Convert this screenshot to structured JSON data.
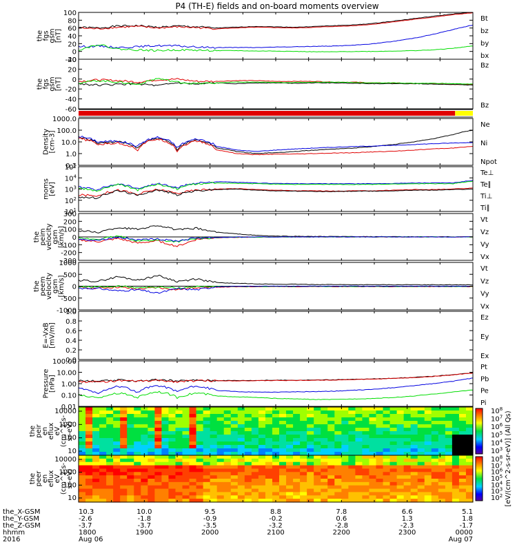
{
  "chart_data": {
    "type": "line",
    "title": "P4 (TH-E) fields and on-board moments overview",
    "colors": {
      "black": "#000000",
      "red": "#e00000",
      "green": "#00dd00",
      "blue": "#0000e0",
      "yellow": "#ffff00"
    },
    "panels": [
      {
        "id": "fgs_gsm_1",
        "ylabel": [
          "the",
          "fgs",
          "gsm",
          "[nT]"
        ],
        "ylim": [
          -20,
          100
        ],
        "scale": "linear",
        "yticks": [
          "100",
          "80",
          "60",
          "40",
          "20",
          "0",
          "-20"
        ],
        "legend": [
          "Bt",
          "bz",
          "by",
          "bx"
        ],
        "series": [
          {
            "name": "Bt",
            "color": "black",
            "values": [
              62,
              60,
              65,
              66,
              62,
              65,
              63,
              60,
              62,
              64,
              63,
              62,
              64,
              66,
              68,
              72,
              78,
              84,
              90,
              96,
              100
            ]
          },
          {
            "name": "bz",
            "color": "red",
            "values": [
              60,
              58,
              62,
              64,
              60,
              63,
              61,
              58,
              60,
              62,
              61,
              60,
              62,
              64,
              66,
              70,
              76,
              82,
              88,
              94,
              99
            ]
          },
          {
            "name": "by",
            "color": "blue",
            "values": [
              12,
              14,
              10,
              12,
              15,
              14,
              11,
              10,
              10,
              10,
              11,
              12,
              13,
              14,
              16,
              20,
              26,
              34,
              44,
              56,
              68
            ]
          },
          {
            "name": "bx",
            "color": "green",
            "values": [
              4,
              18,
              6,
              4,
              2,
              4,
              3,
              2,
              2,
              1,
              1,
              0,
              -1,
              -1,
              0,
              0,
              1,
              2,
              4,
              8,
              14
            ]
          }
        ]
      },
      {
        "id": "fgs_gsm_2",
        "ylabel": [
          "the",
          "fgs",
          "gsm",
          "[nT]"
        ],
        "ylim": [
          -70,
          60
        ],
        "scale": "linear",
        "yticks": [
          "40",
          "20",
          "0",
          "-20",
          "-40",
          "-60"
        ],
        "legend": [
          "Bz",
          "Bz"
        ],
        "series": [
          {
            "name": "Bz",
            "color": "red",
            "values": [
              2,
              6,
              4,
              0,
              6,
              8,
              2,
              2,
              4,
              4,
              2,
              2,
              2,
              0,
              0,
              -2,
              -2,
              -4,
              -4,
              -6,
              -6
            ]
          },
          {
            "name": "Bz",
            "color": "black",
            "values": [
              -4,
              -8,
              -6,
              -4,
              -10,
              -2,
              -6,
              -2,
              -4,
              -2,
              -2,
              -3,
              -2,
              -2,
              -3,
              -4,
              -4,
              -4,
              -5,
              -6,
              -8
            ]
          },
          {
            "name": "",
            "color": "green",
            "values": [
              -2,
              4,
              0,
              -6,
              10,
              0,
              -4,
              -2,
              0,
              0,
              -1,
              -1,
              0,
              0,
              -1,
              -2,
              -2,
              -3,
              -3,
              -4,
              -5
            ]
          }
        ]
      },
      {
        "id": "mode_bar",
        "type": "bar"
      },
      {
        "id": "density",
        "ylabel": [
          "Density",
          "[cm-3]"
        ],
        "ylim": [
          0.1,
          1000
        ],
        "scale": "log",
        "yticks": [
          "1000.0",
          "100.0",
          "10.0",
          "1.0",
          "0.1"
        ],
        "legend": [
          "Ne",
          "Ni",
          "Npot"
        ],
        "series": [
          {
            "name": "Ni",
            "color": "black",
            "values": [
              25,
              8,
              10,
              3,
              20,
              2,
              15,
              3,
              1.5,
              1,
              1.2,
              1.5,
              2,
              2.5,
              3,
              4,
              6,
              10,
              18,
              40,
              100
            ]
          },
          {
            "name": "Npot",
            "color": "blue",
            "values": [
              30,
              10,
              12,
              4,
              25,
              3,
              18,
              4,
              2,
              1.5,
              2,
              2.5,
              3,
              3.5,
              4,
              4.5,
              5,
              6,
              7,
              8,
              9
            ]
          },
          {
            "name": "Ne",
            "color": "red",
            "values": [
              20,
              6,
              8,
              2,
              18,
              1.5,
              12,
              2,
              1,
              0.8,
              0.9,
              0.9,
              1,
              1.1,
              1.2,
              1.4,
              1.6,
              2,
              2.5,
              3,
              4
            ]
          }
        ]
      },
      {
        "id": "moms",
        "ylabel": [
          "moms",
          "[eV]"
        ],
        "ylim": [
          10,
          100000
        ],
        "scale": "log",
        "yticks": [
          "10^5",
          "10^4",
          "10^3",
          "10^2",
          "10^1"
        ],
        "legend": [
          "Te⊥",
          "Te∥",
          "Ti⊥",
          "Ti∥"
        ],
        "series": [
          {
            "name": "Te⊥",
            "color": "red",
            "values": [
              300,
              250,
              800,
              300,
              900,
              400,
              800,
              1000,
              1100,
              900,
              800,
              700,
              700,
              650,
              700,
              700,
              800,
              900,
              900,
              1000,
              1200
            ]
          },
          {
            "name": "Te∥",
            "color": "black",
            "values": [
              200,
              150,
              700,
              250,
              800,
              300,
              700,
              900,
              1000,
              800,
              700,
              650,
              600,
              600,
              650,
              650,
              700,
              800,
              800,
              900,
              1000
            ]
          },
          {
            "name": "Ti⊥",
            "color": "blue",
            "values": [
              1500,
              800,
              3000,
              1000,
              3000,
              1200,
              3500,
              4500,
              4000,
              3500,
              3200,
              3000,
              3000,
              3000,
              3000,
              3000,
              3200,
              3500,
              3500,
              3500,
              6000
            ]
          },
          {
            "name": "Ti∥",
            "color": "green",
            "values": [
              1200,
              600,
              2500,
              800,
              2500,
              1000,
              3000,
              3500,
              3200,
              3000,
              2800,
              2600,
              2600,
              2600,
              2600,
              2600,
              2800,
              3000,
              3000,
              3000,
              5000
            ]
          }
        ]
      },
      {
        "id": "peim_velocity",
        "ylabel": [
          "the",
          "peim",
          "velocity",
          "gsm",
          "[km/s]"
        ],
        "ylim": [
          -300,
          300
        ],
        "scale": "linear",
        "yticks": [
          "300",
          "200",
          "100",
          "0",
          "-100",
          "-200",
          "-300"
        ],
        "legend": [
          "Vt",
          "Vz",
          "Vy",
          "Vx"
        ],
        "series": [
          {
            "name": "Vt",
            "color": "black",
            "values": [
              80,
              60,
              120,
              100,
              150,
              90,
              110,
              60,
              40,
              20,
              10,
              8,
              6,
              5,
              4,
              3,
              3,
              2,
              2,
              2,
              2
            ]
          },
          {
            "name": "Vz",
            "color": "red",
            "values": [
              -40,
              -60,
              -20,
              -80,
              -50,
              -120,
              -30,
              -10,
              -5,
              -2,
              0,
              0,
              0,
              0,
              0,
              0,
              0,
              0,
              0,
              0,
              0
            ]
          },
          {
            "name": "Vy",
            "color": "green",
            "values": [
              -20,
              -30,
              10,
              -50,
              -40,
              -60,
              -20,
              -8,
              -4,
              -2,
              0,
              0,
              0,
              0,
              0,
              0,
              0,
              0,
              0,
              0,
              0
            ]
          },
          {
            "name": "Vx",
            "color": "blue",
            "values": [
              -30,
              -40,
              0,
              -40,
              -30,
              -50,
              -10,
              -5,
              -2,
              0,
              0,
              0,
              0,
              0,
              0,
              0,
              0,
              0,
              0,
              0,
              0
            ]
          }
        ]
      },
      {
        "id": "peem_velocity",
        "ylabel": [
          "the",
          "peem",
          "velocity",
          "gsm",
          "[km/s]"
        ],
        "ylim": [
          -1000,
          1000
        ],
        "scale": "linear",
        "yticks": [
          "1000",
          "500",
          "0",
          "-500",
          "-1000"
        ],
        "legend": [
          "Vt",
          "Vz",
          "Vy",
          "Vx"
        ],
        "series": [
          {
            "name": "Vt",
            "color": "black",
            "values": [
              250,
              200,
              400,
              250,
              450,
              200,
              300,
              150,
              120,
              100,
              80,
              80,
              70,
              70,
              60,
              60,
              60,
              60,
              60,
              60,
              60
            ]
          },
          {
            "name": "Vz",
            "color": "red",
            "values": [
              -60,
              -80,
              -40,
              -120,
              -60,
              -150,
              -50,
              -40,
              -30,
              -20,
              -20,
              -20,
              -20,
              -20,
              -20,
              -20,
              -20,
              -20,
              -20,
              -20,
              -20
            ]
          },
          {
            "name": "Vy",
            "color": "green",
            "values": [
              -30,
              -40,
              0,
              -60,
              -40,
              -80,
              -20,
              -10,
              -10,
              -10,
              -10,
              -10,
              -10,
              -10,
              -10,
              -10,
              -10,
              -10,
              -10,
              -10,
              -10
            ]
          },
          {
            "name": "Vx",
            "color": "blue",
            "values": [
              -80,
              -100,
              -200,
              -150,
              -300,
              -100,
              -150,
              -20,
              -10,
              0,
              0,
              0,
              0,
              0,
              0,
              0,
              0,
              0,
              0,
              0,
              0
            ]
          }
        ]
      },
      {
        "id": "efield",
        "ylabel": [
          "E=-VxB",
          "[mV/m]"
        ],
        "ylim": [
          0,
          1
        ],
        "scale": "linear",
        "yticks": [
          "1.0",
          "0.8",
          "0.6",
          "0.4",
          "0.2",
          "0.0"
        ],
        "legend": [
          "Ez",
          "Ey",
          "Ex"
        ],
        "series": []
      },
      {
        "id": "pressure",
        "ylabel": [
          "Pressure",
          "[nPa]"
        ],
        "ylim": [
          0.01,
          100
        ],
        "scale": "log",
        "yticks": [
          "100.00",
          "10.00",
          "1.00",
          "0.10",
          "0.01"
        ],
        "legend": [
          "Pt",
          "Pb",
          "Pe",
          "Pi"
        ],
        "series": [
          {
            "name": "Pt",
            "color": "black",
            "values": [
              1.8,
              1.6,
              2.0,
              1.8,
              2.1,
              1.7,
              2.0,
              1.9,
              1.9,
              1.9,
              2.0,
              2.0,
              2.1,
              2.2,
              2.4,
              2.6,
              3,
              3.5,
              4.5,
              6,
              9
            ]
          },
          {
            "name": "Pb",
            "color": "red",
            "values": [
              1.5,
              1.4,
              1.8,
              1.6,
              1.9,
              1.5,
              1.8,
              1.8,
              1.8,
              1.8,
              1.9,
              1.9,
              2.0,
              2.1,
              2.3,
              2.5,
              2.9,
              3.4,
              4.3,
              5.8,
              8.5
            ]
          },
          {
            "name": "Pi",
            "color": "blue",
            "values": [
              0.4,
              0.12,
              0.6,
              0.15,
              0.7,
              0.2,
              0.6,
              0.25,
              0.2,
              0.18,
              0.18,
              0.19,
              0.2,
              0.22,
              0.26,
              0.32,
              0.45,
              0.65,
              1.0,
              1.6,
              3
            ]
          },
          {
            "name": "Pe",
            "color": "green",
            "values": [
              0.1,
              0.05,
              0.15,
              0.06,
              0.2,
              0.06,
              0.15,
              0.08,
              0.07,
              0.06,
              0.05,
              0.045,
              0.04,
              0.04,
              0.045,
              0.05,
              0.06,
              0.08,
              0.12,
              0.18,
              0.28
            ]
          }
        ]
      },
      {
        "id": "peir_spec",
        "type": "heatmap",
        "ylabel": [
          "the",
          "peir",
          "en",
          "eflux",
          "eV",
          "(cm^2-s-",
          "sr-eV)"
        ],
        "yticks": [
          "10000",
          "1000",
          "100",
          "10"
        ],
        "colorbar_ticks": [
          "10^8",
          "10^7",
          "10^6",
          "10^5",
          "10^4",
          "10^3"
        ],
        "colorbar_label": "[eV/(cm^2-s-sr-eV)] (All Qs)"
      },
      {
        "id": "peer_spec",
        "type": "heatmap",
        "ylabel": [
          "the",
          "peer",
          "en",
          "eflux",
          "eV",
          "(cm^2-s-",
          "sr-eV)"
        ],
        "yticks": [
          "10000",
          "1000",
          "100",
          "10"
        ],
        "colorbar_ticks": [
          "10^8",
          "10^7",
          "10^6",
          "10^5",
          "10^4",
          "10^3",
          "10^2"
        ]
      }
    ],
    "x_axis": {
      "rows": [
        {
          "label": "the_X-GSM",
          "values": [
            "10.3",
            "10.0",
            "9.5",
            "8.8",
            "7.8",
            "6.6",
            "5.1"
          ]
        },
        {
          "label": "the_Y-GSM",
          "values": [
            "-2.6",
            "-1.8",
            "-0.9",
            "-0.2",
            "0.6",
            "1.3",
            "1.8"
          ]
        },
        {
          "label": "the_Z-GSM",
          "values": [
            "-3.7",
            "-3.7",
            "-3.5",
            "-3.2",
            "-2.8",
            "-2.3",
            "-1.7"
          ]
        },
        {
          "label": "hhmm",
          "values": [
            "1800",
            "1900",
            "2000",
            "2100",
            "2200",
            "2300",
            "0000"
          ]
        },
        {
          "label": "2016",
          "values": [
            "Aug 06",
            "",
            "",
            "",
            "",
            "",
            "Aug 07"
          ]
        }
      ]
    }
  }
}
